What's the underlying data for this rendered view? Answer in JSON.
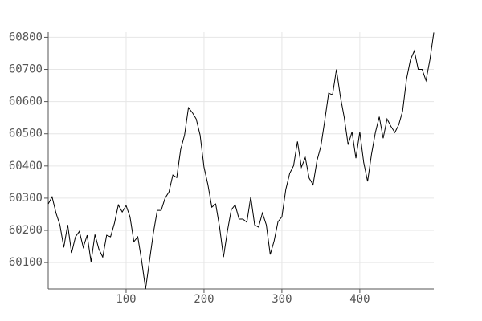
{
  "chart_data": {
    "type": "line",
    "color": "#000000",
    "grid": true,
    "x": [
      0,
      5,
      10,
      15,
      20,
      25,
      30,
      35,
      40,
      45,
      50,
      55,
      60,
      65,
      70,
      75,
      80,
      85,
      90,
      95,
      100,
      105,
      110,
      115,
      120,
      125,
      130,
      135,
      140,
      145,
      150,
      155,
      160,
      165,
      170,
      175,
      180,
      185,
      190,
      195,
      200,
      205,
      210,
      215,
      220,
      225,
      230,
      235,
      240,
      245,
      250,
      255,
      260,
      265,
      270,
      275,
      280,
      285,
      290,
      295,
      300,
      305,
      310,
      315,
      320,
      325,
      330,
      335,
      340,
      345,
      350,
      355,
      360,
      365,
      370,
      375,
      380,
      385,
      390,
      395,
      400,
      405,
      410,
      415,
      420,
      425,
      430,
      435,
      440,
      445,
      450,
      455,
      460,
      465,
      470,
      475,
      480,
      485,
      490,
      495
    ],
    "values": [
      60282,
      60304,
      60254,
      60217,
      60147,
      60217,
      60130,
      60180,
      60197,
      60147,
      60185,
      60102,
      60187,
      60142,
      60117,
      60185,
      60180,
      60222,
      60279,
      60257,
      60277,
      60242,
      60165,
      60180,
      60105,
      60018,
      60105,
      60192,
      60262,
      60262,
      60300,
      60319,
      60372,
      60364,
      60451,
      60496,
      60581,
      60566,
      60546,
      60496,
      60396,
      60342,
      60272,
      60282,
      60210,
      60117,
      60197,
      60264,
      60279,
      60235,
      60235,
      60225,
      60304,
      60217,
      60210,
      60254,
      60217,
      60125,
      60167,
      60227,
      60242,
      60327,
      60377,
      60401,
      60476,
      60396,
      60426,
      60362,
      60342,
      60416,
      60461,
      60541,
      60626,
      60621,
      60700,
      60616,
      60551,
      60466,
      60506,
      60424,
      60506,
      60411,
      60352,
      60436,
      60504,
      60553,
      60486,
      60546,
      60523,
      60504,
      60528,
      60571,
      60670,
      60730,
      60758,
      60700,
      60700,
      60665,
      60730,
      60815
    ],
    "xlim": [
      0,
      495
    ],
    "ylim": [
      60018,
      60816
    ],
    "xticks": [
      100,
      200,
      300,
      400
    ],
    "yticks": [
      60100,
      60200,
      60300,
      60400,
      60500,
      60600,
      60700,
      60800
    ]
  }
}
